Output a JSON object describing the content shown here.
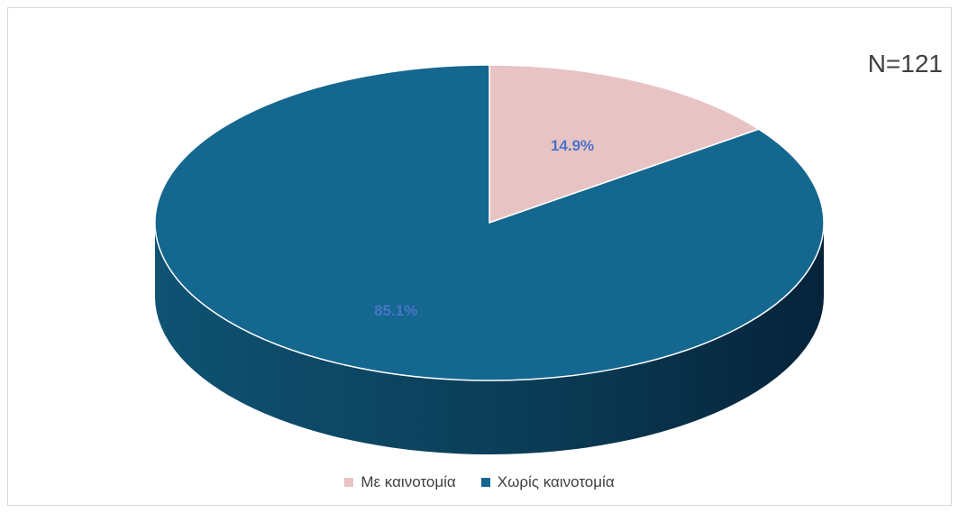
{
  "n_label": "N=121",
  "chart_data": {
    "type": "pie",
    "title": "",
    "categories": [
      "Με καινοτομία",
      "Χωρίς καινοτομία"
    ],
    "values": [
      14.9,
      85.1
    ],
    "data_labels": [
      "14.9%",
      "85.1%"
    ],
    "colors": [
      "#e8c3c3",
      "#14678f"
    ],
    "style": "3d",
    "legend_position": "bottom"
  },
  "legend": {
    "items": [
      {
        "label": "Με καινοτομία",
        "color": "#e8c3c3"
      },
      {
        "label": "Χωρίς καινοτομία",
        "color": "#14678f"
      }
    ]
  }
}
